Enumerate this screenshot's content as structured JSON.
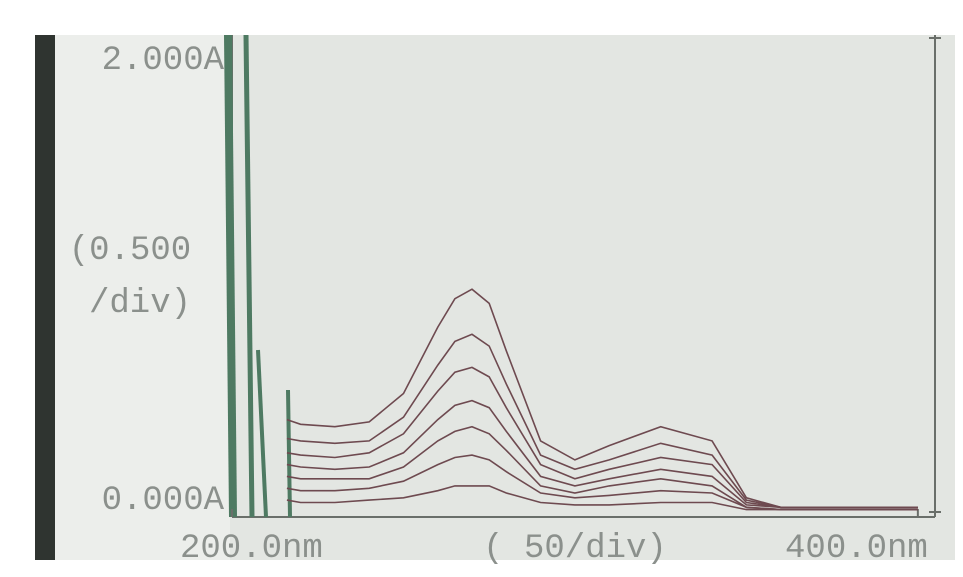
{
  "chart_data": {
    "type": "line",
    "x": [
      216,
      220,
      230,
      240,
      250,
      260,
      265,
      270,
      275,
      280,
      290,
      300,
      310,
      325,
      340,
      350,
      360,
      400
    ],
    "xlim": [
      200,
      405
    ],
    "xticks": [
      {
        "value": 200,
        "label": "200.0nm"
      },
      {
        "value": 400,
        "label": "400.0nm"
      }
    ],
    "ylim": [
      0,
      2
    ],
    "yticks": [
      {
        "value": 0,
        "label": "0.000A"
      },
      {
        "value": 2,
        "label": "2.000A"
      }
    ],
    "annotations": [
      "(0.500",
      "/div)",
      "( 50/div)"
    ],
    "series": [
      {
        "color": "#6e4a50",
        "values": [
          0.39,
          0.37,
          0.36,
          0.38,
          0.5,
          0.78,
          0.9,
          0.94,
          0.88,
          0.68,
          0.3,
          0.22,
          0.28,
          0.36,
          0.3,
          0.06,
          0.02,
          0.02
        ]
      },
      {
        "color": "#6e4a50",
        "values": [
          0.31,
          0.3,
          0.29,
          0.3,
          0.4,
          0.62,
          0.72,
          0.75,
          0.7,
          0.54,
          0.24,
          0.18,
          0.22,
          0.29,
          0.24,
          0.05,
          0.02,
          0.02
        ]
      },
      {
        "color": "#6e4a50",
        "values": [
          0.25,
          0.24,
          0.23,
          0.25,
          0.33,
          0.51,
          0.59,
          0.61,
          0.57,
          0.44,
          0.2,
          0.14,
          0.18,
          0.23,
          0.2,
          0.04,
          0.02,
          0.02
        ]
      },
      {
        "color": "#6e4a50",
        "values": [
          0.2,
          0.19,
          0.18,
          0.19,
          0.25,
          0.39,
          0.45,
          0.47,
          0.44,
          0.34,
          0.15,
          0.11,
          0.14,
          0.18,
          0.15,
          0.03,
          0.02,
          0.02
        ]
      },
      {
        "color": "#6e4a50",
        "values": [
          0.15,
          0.14,
          0.14,
          0.14,
          0.19,
          0.3,
          0.34,
          0.36,
          0.33,
          0.26,
          0.11,
          0.08,
          0.11,
          0.14,
          0.11,
          0.02,
          0.01,
          0.01
        ]
      },
      {
        "color": "#6e4a50",
        "values": [
          0.1,
          0.09,
          0.09,
          0.1,
          0.13,
          0.2,
          0.23,
          0.24,
          0.22,
          0.17,
          0.08,
          0.06,
          0.07,
          0.09,
          0.08,
          0.02,
          0.01,
          0.01
        ]
      },
      {
        "color": "#6e4a50",
        "values": [
          0.05,
          0.04,
          0.04,
          0.05,
          0.06,
          0.09,
          0.11,
          0.11,
          0.11,
          0.08,
          0.04,
          0.03,
          0.03,
          0.04,
          0.04,
          0.01,
          0.01,
          0.01
        ]
      }
    ]
  }
}
